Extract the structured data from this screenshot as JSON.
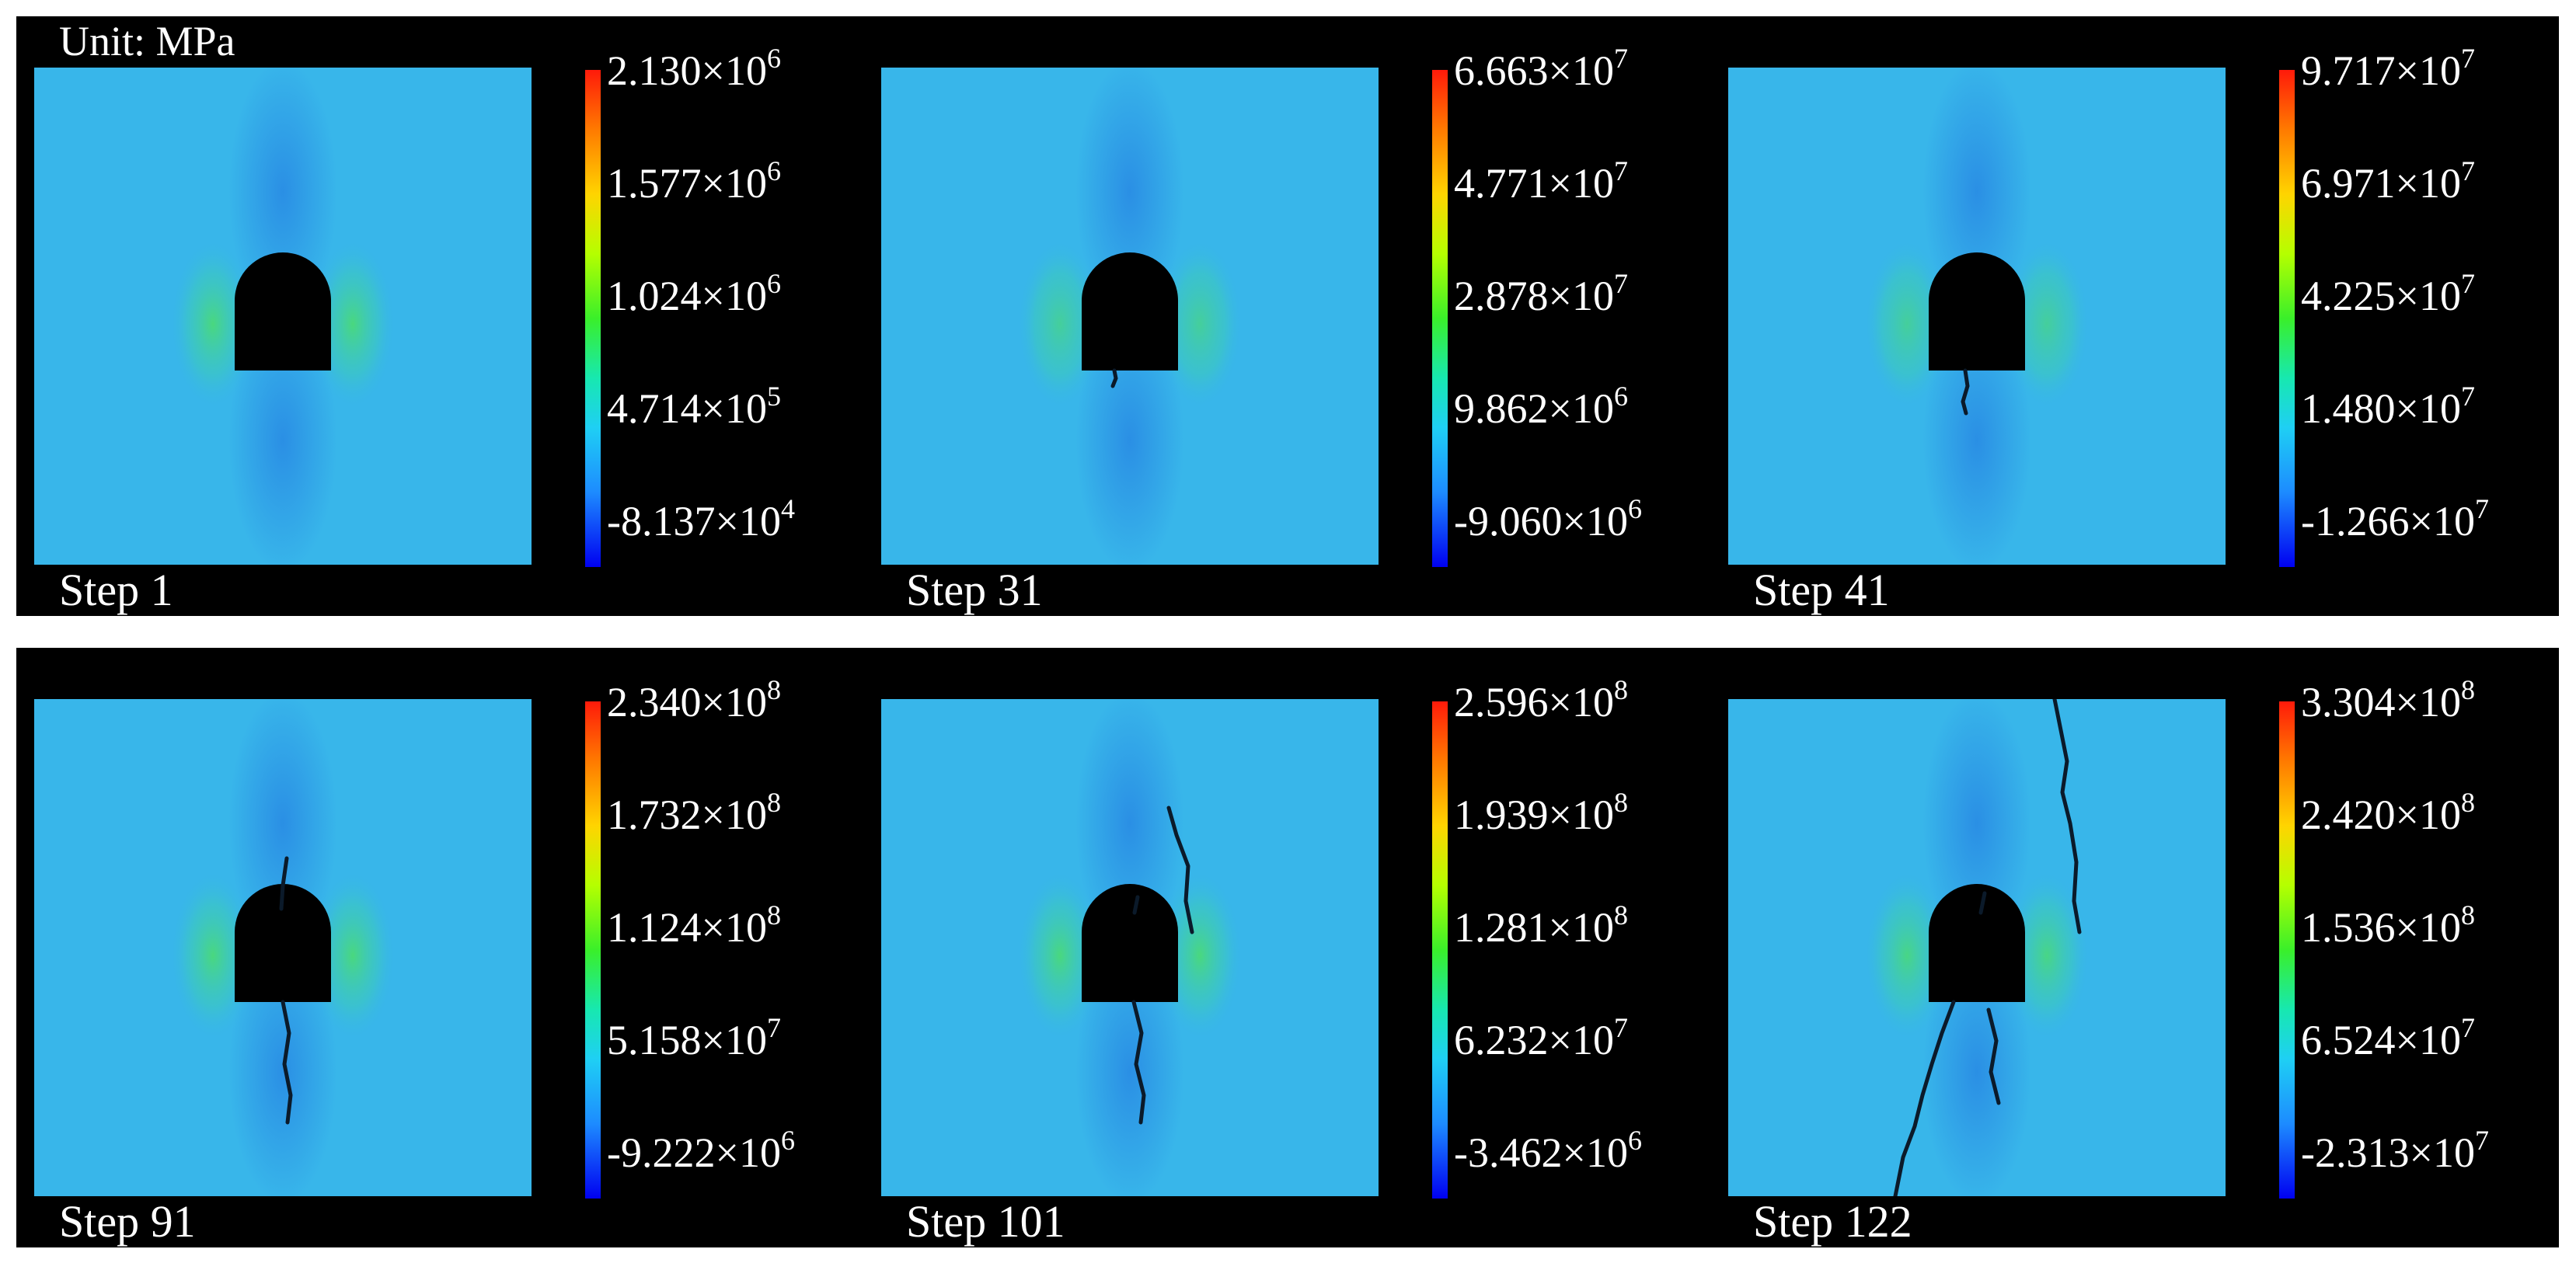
{
  "unit_label": "Unit: MPa",
  "colors": {
    "background": "#000000",
    "field_base": "#38b6ea",
    "scale_top": "#ff1a0a",
    "scale_bottom": "#0000f0",
    "stress_concentration": "#4fe35a",
    "fracture": "#0b1a2a"
  },
  "panels": [
    {
      "step": "Step 1",
      "ticks": [
        {
          "m": "2.130",
          "e": "6"
        },
        {
          "m": "1.577",
          "e": "6"
        },
        {
          "m": "1.024",
          "e": "6"
        },
        {
          "m": "4.714",
          "e": "5"
        },
        {
          "m": "-8.137",
          "e": "4"
        }
      ]
    },
    {
      "step": "Step 31",
      "ticks": [
        {
          "m": "6.663",
          "e": "7"
        },
        {
          "m": "4.771",
          "e": "7"
        },
        {
          "m": "2.878",
          "e": "7"
        },
        {
          "m": "9.862",
          "e": "6"
        },
        {
          "m": "-9.060",
          "e": "6"
        }
      ]
    },
    {
      "step": "Step 41",
      "ticks": [
        {
          "m": "9.717",
          "e": "7"
        },
        {
          "m": "6.971",
          "e": "7"
        },
        {
          "m": "4.225",
          "e": "7"
        },
        {
          "m": "1.480",
          "e": "7"
        },
        {
          "m": "-1.266",
          "e": "7"
        }
      ]
    },
    {
      "step": "Step 91",
      "ticks": [
        {
          "m": "2.340",
          "e": "8"
        },
        {
          "m": "1.732",
          "e": "8"
        },
        {
          "m": "1.124",
          "e": "8"
        },
        {
          "m": "5.158",
          "e": "7"
        },
        {
          "m": "-9.222",
          "e": "6"
        }
      ]
    },
    {
      "step": "Step 101",
      "ticks": [
        {
          "m": "2.596",
          "e": "8"
        },
        {
          "m": "1.939",
          "e": "8"
        },
        {
          "m": "1.281",
          "e": "8"
        },
        {
          "m": "6.232",
          "e": "7"
        },
        {
          "m": "-3.462",
          "e": "6"
        }
      ]
    },
    {
      "step": "Step 122",
      "ticks": [
        {
          "m": "3.304",
          "e": "8"
        },
        {
          "m": "2.420",
          "e": "8"
        },
        {
          "m": "1.536",
          "e": "8"
        },
        {
          "m": "6.524",
          "e": "7"
        },
        {
          "m": "-2.313",
          "e": "7"
        }
      ]
    }
  ]
}
